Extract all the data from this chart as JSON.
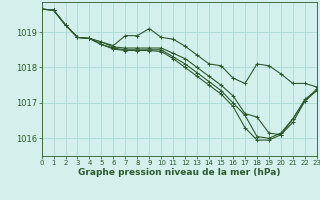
{
  "background_color": "#d4f0ec",
  "grid_color": "#b0ddd8",
  "line_color": "#2d5a2d",
  "xlim": [
    0,
    23
  ],
  "ylim": [
    1015.5,
    1019.85
  ],
  "yticks": [
    1016,
    1017,
    1018,
    1019
  ],
  "xticks": [
    0,
    1,
    2,
    3,
    4,
    5,
    6,
    7,
    8,
    9,
    10,
    11,
    12,
    13,
    14,
    15,
    16,
    17,
    18,
    19,
    20,
    21,
    22,
    23
  ],
  "xlabel": "Graphe pression niveau de la mer (hPa)",
  "series": [
    [
      1019.65,
      1019.62,
      1019.2,
      1018.85,
      1018.82,
      1018.72,
      1018.62,
      1018.9,
      1018.9,
      1019.1,
      1018.85,
      1018.8,
      1018.6,
      1018.35,
      1018.1,
      1018.05,
      1017.7,
      1017.55,
      1018.1,
      1018.05,
      1017.82,
      1017.55,
      1017.55,
      1017.45
    ],
    [
      1019.65,
      1019.62,
      1019.2,
      1018.85,
      1018.82,
      1018.72,
      1018.58,
      1018.55,
      1018.55,
      1018.55,
      1018.55,
      1018.4,
      1018.25,
      1018.0,
      1017.75,
      1017.5,
      1017.2,
      1016.7,
      1016.6,
      1016.15,
      1016.1,
      1016.55,
      1017.05,
      1017.4
    ],
    [
      1019.65,
      1019.62,
      1019.2,
      1018.85,
      1018.82,
      1018.65,
      1018.55,
      1018.5,
      1018.5,
      1018.5,
      1018.5,
      1018.3,
      1018.1,
      1017.85,
      1017.6,
      1017.35,
      1017.0,
      1016.65,
      1016.05,
      1016.0,
      1016.15,
      1016.55,
      1017.1,
      1017.35
    ],
    [
      1019.65,
      1019.62,
      1019.2,
      1018.85,
      1018.82,
      1018.65,
      1018.52,
      1018.48,
      1018.48,
      1018.48,
      1018.45,
      1018.25,
      1018.0,
      1017.75,
      1017.5,
      1017.25,
      1016.9,
      1016.3,
      1015.95,
      1015.95,
      1016.1,
      1016.45,
      1017.05,
      1017.35
    ]
  ]
}
